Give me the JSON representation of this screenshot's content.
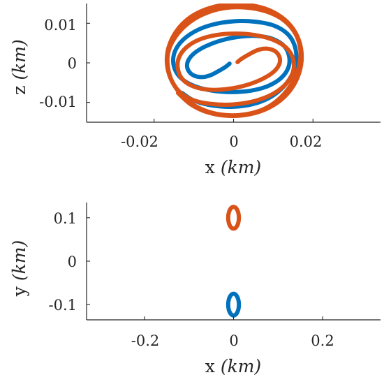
{
  "colors": {
    "series_blue": "#0072bd",
    "series_orange": "#d95319",
    "axis": "#262626"
  },
  "chart_data": [
    {
      "type": "line",
      "title": "",
      "xlabel": {
        "prefix": "x ",
        "unit": "(km)"
      },
      "ylabel": {
        "prefix": "z ",
        "unit": "(km)"
      },
      "xlim": [
        -0.037,
        0.037
      ],
      "ylim": [
        -0.015,
        0.015
      ],
      "xticks": [
        -0.02,
        0,
        0.02
      ],
      "xtick_labels": [
        "-0.02",
        "0",
        "0.02"
      ],
      "yticks": [
        -0.01,
        0,
        0.01
      ],
      "ytick_labels": [
        "-0.01",
        "0",
        "0.01"
      ],
      "grid": false,
      "legend": "none",
      "series": [
        {
          "color": "#0072bd",
          "shape": "spiral",
          "points": [
            [
              -0.001,
              -0.0002
            ],
            [
              -0.002,
              -0.001
            ],
            [
              -0.004,
              -0.0022
            ],
            [
              -0.006,
              -0.0032
            ],
            [
              -0.008,
              -0.0036
            ],
            [
              -0.01,
              -0.0032
            ],
            [
              -0.0112,
              -0.0022
            ],
            [
              -0.0117,
              -0.0008
            ],
            [
              -0.0113,
              0.0008
            ],
            [
              -0.0098,
              0.0025
            ],
            [
              -0.007,
              0.0042
            ],
            [
              -0.003,
              0.0057
            ],
            [
              0.0015,
              0.0066
            ],
            [
              0.006,
              0.0068
            ],
            [
              0.01,
              0.006
            ],
            [
              0.0128,
              0.0042
            ],
            [
              0.014,
              0.0016
            ],
            [
              0.0138,
              -0.0012
            ],
            [
              0.012,
              -0.0038
            ],
            [
              0.0088,
              -0.0058
            ],
            [
              0.0045,
              -0.007
            ],
            [
              -0.0005,
              -0.0074
            ],
            [
              -0.0055,
              -0.007
            ],
            [
              -0.01,
              -0.0058
            ],
            [
              -0.0133,
              -0.0038
            ],
            [
              -0.015,
              -0.001
            ],
            [
              -0.015,
              0.0022
            ],
            [
              -0.0133,
              0.0052
            ],
            [
              -0.01,
              0.0078
            ],
            [
              -0.0055,
              0.0096
            ],
            [
              0.0,
              0.0105
            ],
            [
              0.0055,
              0.0104
            ],
            [
              0.0102,
              0.0094
            ],
            [
              0.0135,
              0.0074
            ],
            [
              0.0153,
              0.0046
            ],
            [
              0.0158,
              0.0012
            ],
            [
              0.015,
              -0.0024
            ],
            [
              0.0128,
              -0.0058
            ],
            [
              0.0094,
              -0.0086
            ],
            [
              0.005,
              -0.0104
            ],
            [
              0.0,
              -0.0111
            ],
            [
              -0.0052,
              -0.0108
            ],
            [
              -0.0098,
              -0.0096
            ],
            [
              -0.013,
              -0.0076
            ]
          ]
        },
        {
          "color": "#d95319",
          "shape": "spiral",
          "points": [
            [
              0.001,
              0.0002
            ],
            [
              0.002,
              0.001
            ],
            [
              0.004,
              0.0022
            ],
            [
              0.006,
              0.0032
            ],
            [
              0.008,
              0.0036
            ],
            [
              0.01,
              0.0032
            ],
            [
              0.0112,
              0.0022
            ],
            [
              0.0117,
              0.0008
            ],
            [
              0.0113,
              -0.0008
            ],
            [
              0.0098,
              -0.0025
            ],
            [
              0.007,
              -0.0042
            ],
            [
              0.003,
              -0.0057
            ],
            [
              -0.0015,
              -0.0066
            ],
            [
              -0.006,
              -0.0068
            ],
            [
              -0.01,
              -0.006
            ],
            [
              -0.0128,
              -0.0042
            ],
            [
              -0.014,
              -0.0016
            ],
            [
              -0.0138,
              0.0012
            ],
            [
              -0.012,
              0.0038
            ],
            [
              -0.0088,
              0.0058
            ],
            [
              -0.0045,
              0.007
            ],
            [
              0.0005,
              0.0074
            ],
            [
              0.0055,
              0.007
            ],
            [
              0.01,
              0.0058
            ],
            [
              0.0133,
              0.0038
            ],
            [
              0.015,
              0.001
            ],
            [
              0.015,
              -0.0022
            ],
            [
              0.0133,
              -0.0052
            ],
            [
              0.01,
              -0.0078
            ],
            [
              0.0055,
              -0.0096
            ],
            [
              0.0,
              -0.0105
            ],
            [
              -0.0055,
              -0.0104
            ],
            [
              -0.0102,
              -0.0094
            ],
            [
              -0.0135,
              -0.0074
            ],
            [
              -0.0155,
              -0.0046
            ],
            [
              -0.0165,
              -0.0012
            ],
            [
              -0.0165,
              0.0024
            ],
            [
              -0.015,
              0.006
            ],
            [
              -0.012,
              0.0095
            ],
            [
              -0.0078,
              0.0122
            ],
            [
              -0.0025,
              0.0138
            ],
            [
              0.003,
              0.014
            ],
            [
              0.0082,
              0.013
            ],
            [
              0.0126,
              0.0108
            ],
            [
              0.0155,
              0.0075
            ],
            [
              0.0168,
              0.0035
            ],
            [
              0.0165,
              -0.0008
            ],
            [
              0.0148,
              -0.005
            ],
            [
              0.0118,
              -0.0088
            ],
            [
              0.0078,
              -0.0116
            ],
            [
              0.003,
              -0.013
            ],
            [
              -0.002,
              -0.0132
            ],
            [
              -0.0068,
              -0.0122
            ],
            [
              -0.011,
              -0.01
            ],
            [
              -0.0142,
              -0.0068
            ],
            [
              -0.0162,
              -0.003
            ],
            [
              -0.0168,
              0.001
            ],
            [
              -0.016,
              0.005
            ],
            [
              -0.0138,
              0.0088
            ],
            [
              -0.0105,
              0.0118
            ],
            [
              -0.0062,
              0.0138
            ],
            [
              -0.0012,
              0.0148
            ],
            [
              0.004,
              0.0146
            ],
            [
              0.0088,
              0.0134
            ],
            [
              0.0128,
              0.011
            ],
            [
              0.0156,
              0.0076
            ],
            [
              0.017,
              0.0036
            ],
            [
              0.017,
              -0.0006
            ],
            [
              0.0156,
              -0.0048
            ],
            [
              0.0128,
              -0.0086
            ],
            [
              0.0088,
              -0.0114
            ],
            [
              0.004,
              -0.013
            ],
            [
              -0.0012,
              -0.0134
            ],
            [
              -0.0062,
              -0.0126
            ],
            [
              -0.0106,
              -0.0106
            ],
            [
              -0.014,
              -0.0076
            ]
          ]
        }
      ]
    },
    {
      "type": "line",
      "title": "",
      "xlabel": {
        "prefix": "x ",
        "unit": "(km)"
      },
      "ylabel": {
        "prefix": "y ",
        "unit": "(km)"
      },
      "xlim": [
        -0.33,
        0.33
      ],
      "ylim": [
        -0.135,
        0.135
      ],
      "xticks": [
        -0.2,
        0,
        0.2
      ],
      "xtick_labels": [
        "-0.2",
        "0",
        "0.2"
      ],
      "yticks": [
        -0.1,
        0,
        0.1
      ],
      "ytick_labels": [
        "-0.1",
        "0",
        "0.1"
      ],
      "grid": false,
      "legend": "none",
      "series": [
        {
          "color": "#0072bd",
          "shape": "ellipse",
          "center": [
            0.0,
            -0.1
          ],
          "radii": [
            0.012,
            0.025
          ]
        },
        {
          "color": "#d95319",
          "shape": "ellipse",
          "center": [
            0.0,
            0.1
          ],
          "radii": [
            0.012,
            0.025
          ]
        }
      ]
    }
  ]
}
